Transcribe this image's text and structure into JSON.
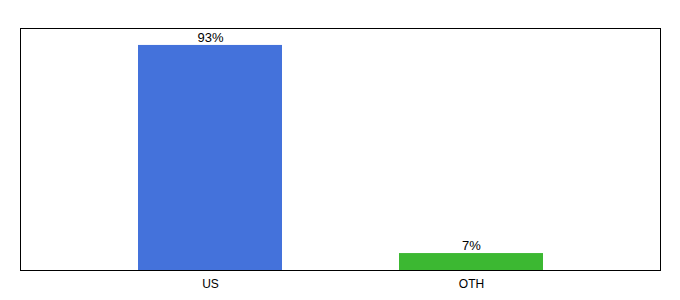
{
  "chart_data": {
    "type": "bar",
    "categories": [
      "US",
      "OTH"
    ],
    "values": [
      93,
      7
    ],
    "value_labels": [
      "93%",
      "7%"
    ],
    "colors": [
      "#4472db",
      "#3cb832"
    ],
    "ylim": [
      0,
      100
    ],
    "data_labels": true,
    "tick_labels": "x"
  }
}
